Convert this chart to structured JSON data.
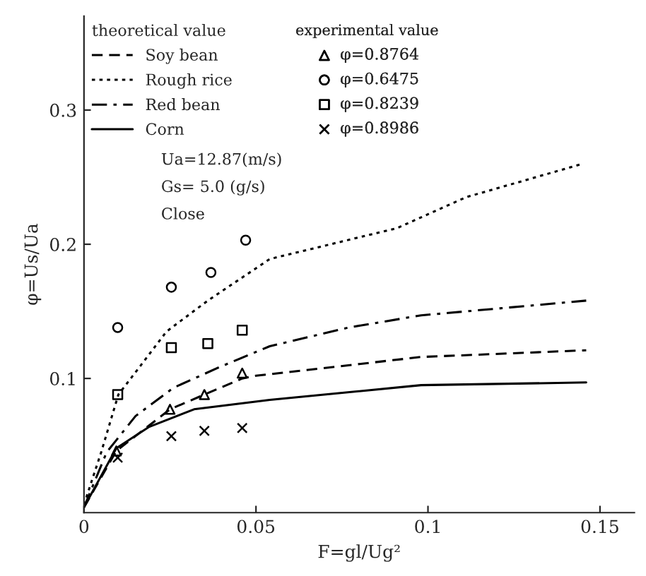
{
  "chart_data": {
    "type": "line",
    "xlabel": "F=gl/Ug²",
    "ylabel": "φ=Us/Ua",
    "legend_title": "theoretical value",
    "legend": "top left",
    "grid": false,
    "xlim": [
      0,
      0.16
    ],
    "ylim": [
      0,
      0.37
    ],
    "xticks": [
      0,
      0.05,
      0.1,
      0.15
    ],
    "yticks": [
      0.1,
      0.2,
      0.3
    ],
    "annotations": [
      "experimental value",
      "Ua=12.87(m/s)",
      "Gs= 5.0 (g/s)",
      "Close"
    ],
    "series": [
      {
        "name": "Soy bean",
        "color": "#000000",
        "line_style": "dashed",
        "marker": "none",
        "x": [
          0,
          0.0094,
          0.025,
          0.035,
          0.046,
          0.05,
          0.098,
          0.146
        ],
        "values": [
          0.004,
          0.046,
          0.077,
          0.088,
          0.1,
          0.102,
          0.116,
          0.121
        ]
      },
      {
        "name": "Rough rice",
        "color": "#000000",
        "line_style": "dotted",
        "marker": "none",
        "x": [
          0,
          0.005,
          0.01,
          0.016,
          0.024,
          0.036,
          0.054,
          0.091,
          0.111,
          0.145
        ],
        "values": [
          0.006,
          0.045,
          0.088,
          0.108,
          0.135,
          0.158,
          0.189,
          0.212,
          0.235,
          0.26
        ]
      },
      {
        "name": "Red bean",
        "color": "#000000",
        "line_style": "dashdot",
        "marker": "none",
        "x": [
          0,
          0.0066,
          0.015,
          0.026,
          0.039,
          0.054,
          0.077,
          0.098,
          0.146
        ],
        "values": [
          0.004,
          0.045,
          0.072,
          0.093,
          0.108,
          0.124,
          0.138,
          0.147,
          0.158
        ]
      },
      {
        "name": "Corn",
        "color": "#000000",
        "line_style": "solid",
        "marker": "none",
        "x": [
          0,
          0.0094,
          0.019,
          0.032,
          0.054,
          0.098,
          0.146
        ],
        "values": [
          0.004,
          0.048,
          0.064,
          0.077,
          0.084,
          0.095,
          0.097
        ]
      },
      {
        "name": "φ=0.8764",
        "type": "scatter",
        "color": "#000000",
        "marker": "triangle",
        "x": [
          0.0094,
          0.025,
          0.035,
          0.046
        ],
        "values": [
          0.046,
          0.077,
          0.088,
          0.104
        ]
      },
      {
        "name": "φ=0.6475",
        "type": "scatter",
        "color": "#000000",
        "marker": "circle",
        "x": [
          0.0098,
          0.0254,
          0.0369,
          0.047
        ],
        "values": [
          0.138,
          0.168,
          0.179,
          0.203
        ]
      },
      {
        "name": "φ=0.8239",
        "type": "scatter",
        "color": "#000000",
        "marker": "square",
        "x": [
          0.0098,
          0.0254,
          0.036,
          0.046
        ],
        "values": [
          0.088,
          0.123,
          0.126,
          0.136
        ]
      },
      {
        "name": "φ=0.8986",
        "type": "scatter",
        "color": "#000000",
        "marker": "cross",
        "x": [
          0.0098,
          0.0254,
          0.035,
          0.046
        ],
        "values": [
          0.041,
          0.057,
          0.061,
          0.063
        ]
      }
    ]
  }
}
